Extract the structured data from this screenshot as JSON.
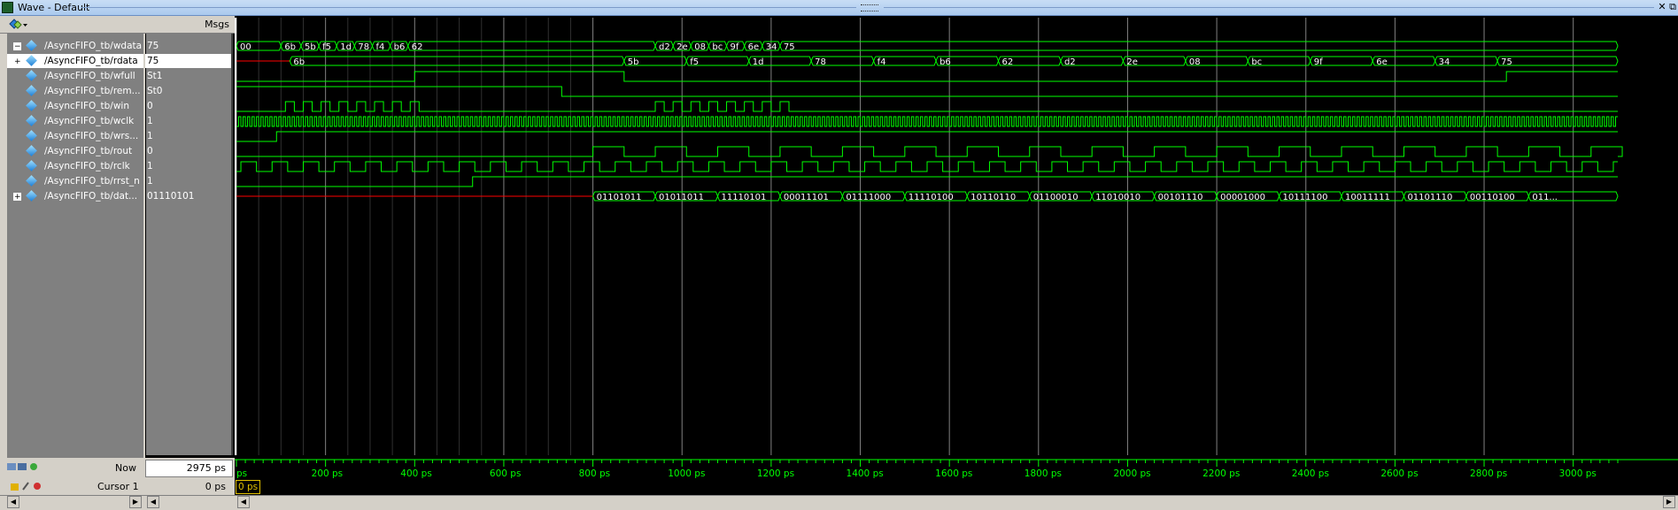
{
  "window": {
    "title": "Wave - Default",
    "close": "✕",
    "undock": "⧉"
  },
  "header": {
    "msgs_label": "Msgs"
  },
  "signals": [
    {
      "name": "/AsyncFIFO_tb/wdata",
      "value": "75",
      "expandable": true,
      "expanded": true
    },
    {
      "name": "/AsyncFIFO_tb/rdata",
      "value": "75",
      "expandable": true,
      "selected": true
    },
    {
      "name": "/AsyncFIFO_tb/wfull",
      "value": "St1"
    },
    {
      "name": "/AsyncFIFO_tb/rem...",
      "value": "St0"
    },
    {
      "name": "/AsyncFIFO_tb/win",
      "value": "0"
    },
    {
      "name": "/AsyncFIFO_tb/wclk",
      "value": "1"
    },
    {
      "name": "/AsyncFIFO_tb/wrs...",
      "value": "1"
    },
    {
      "name": "/AsyncFIFO_tb/rout",
      "value": "0"
    },
    {
      "name": "/AsyncFIFO_tb/rclk",
      "value": "1"
    },
    {
      "name": "/AsyncFIFO_tb/rrst_n",
      "value": "1"
    },
    {
      "name": "/AsyncFIFO_tb/dat...",
      "value": "01110101",
      "expandable": true
    }
  ],
  "now": {
    "label": "Now",
    "value": "2975 ps"
  },
  "cursor": {
    "label": "Cursor 1",
    "value": "0 ps",
    "box": "0 ps"
  },
  "timeline": {
    "tick_labels": [
      "ps",
      "200 ps",
      "400 ps",
      "600 ps",
      "800 ps",
      "1000 ps",
      "1200 ps",
      "1400 ps",
      "1600 ps",
      "1800 ps",
      "2000 ps",
      "2200 ps",
      "2400 ps",
      "2600 ps",
      "2800 ps",
      "3000 ps"
    ],
    "tick_times": [
      0,
      200,
      400,
      600,
      800,
      1000,
      1200,
      1400,
      1600,
      1800,
      2000,
      2200,
      2400,
      2600,
      2800,
      3000
    ],
    "start_ps": 0,
    "end_ps": 3100
  },
  "waves": {
    "wdata": [
      {
        "t": 0,
        "v": "00"
      },
      {
        "t": 100,
        "v": "6b"
      },
      {
        "t": 145,
        "v": "5b"
      },
      {
        "t": 185,
        "v": "f5"
      },
      {
        "t": 225,
        "v": "1d"
      },
      {
        "t": 265,
        "v": "78"
      },
      {
        "t": 305,
        "v": "f4"
      },
      {
        "t": 345,
        "v": "b6"
      },
      {
        "t": 385,
        "v": "62"
      },
      {
        "t": 940,
        "v": "d2"
      },
      {
        "t": 980,
        "v": "2e"
      },
      {
        "t": 1020,
        "v": "08"
      },
      {
        "t": 1060,
        "v": "bc"
      },
      {
        "t": 1100,
        "v": "9f"
      },
      {
        "t": 1140,
        "v": "6e"
      },
      {
        "t": 1180,
        "v": "34"
      },
      {
        "t": 1220,
        "v": "75"
      }
    ],
    "rdata": [
      {
        "t": 120,
        "v": "6b"
      },
      {
        "t": 870,
        "v": "5b"
      },
      {
        "t": 1010,
        "v": "f5"
      },
      {
        "t": 1150,
        "v": "1d"
      },
      {
        "t": 1290,
        "v": "78"
      },
      {
        "t": 1430,
        "v": "f4"
      },
      {
        "t": 1570,
        "v": "b6"
      },
      {
        "t": 1710,
        "v": "62"
      },
      {
        "t": 1850,
        "v": "d2"
      },
      {
        "t": 1990,
        "v": "2e"
      },
      {
        "t": 2130,
        "v": "08"
      },
      {
        "t": 2270,
        "v": "bc"
      },
      {
        "t": 2410,
        "v": "9f"
      },
      {
        "t": 2550,
        "v": "6e"
      },
      {
        "t": 2690,
        "v": "34"
      },
      {
        "t": 2830,
        "v": "75"
      }
    ],
    "dat": [
      {
        "t": 800,
        "v": "01101011"
      },
      {
        "t": 940,
        "v": "01011011"
      },
      {
        "t": 1080,
        "v": "11110101"
      },
      {
        "t": 1220,
        "v": "00011101"
      },
      {
        "t": 1360,
        "v": "01111000"
      },
      {
        "t": 1500,
        "v": "11110100"
      },
      {
        "t": 1640,
        "v": "10110110"
      },
      {
        "t": 1780,
        "v": "01100010"
      },
      {
        "t": 1920,
        "v": "11010010"
      },
      {
        "t": 2060,
        "v": "00101110"
      },
      {
        "t": 2200,
        "v": "00001000"
      },
      {
        "t": 2340,
        "v": "10111100"
      },
      {
        "t": 2480,
        "v": "10011111"
      },
      {
        "t": 2620,
        "v": "01101110"
      },
      {
        "t": 2760,
        "v": "00110100"
      },
      {
        "t": 2900,
        "v": "011..."
      }
    ]
  },
  "colors": {
    "wave": "#00ff00",
    "undefined": "#ff0000",
    "grid": "#808080",
    "cursor": "#e0c000"
  }
}
